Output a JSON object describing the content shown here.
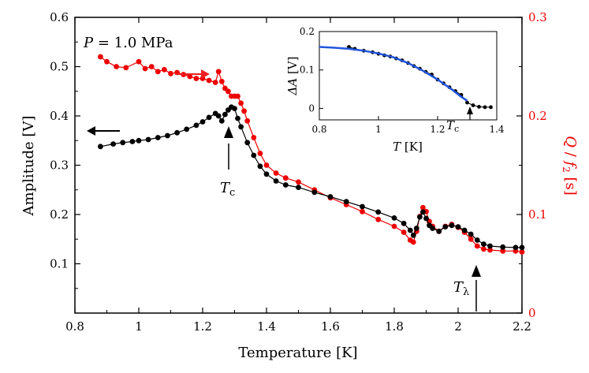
{
  "chart_data": {
    "type": "scatter",
    "main": {
      "xlabel": "Temperature [K]",
      "ylabel_left": "Amplitude [V]",
      "ylabel_right": "Q / f2 [s]",
      "ylabel_right_symbol": "Q",
      "ylabel_right_sep": " / ",
      "ylabel_right_f": "f",
      "ylabel_right_sub": "2",
      "ylabel_right_unit": " [s]",
      "xlim": [
        0.8,
        2.2
      ],
      "ylim_left": [
        0.0,
        0.6
      ],
      "ylim_right": [
        0.0,
        0.3
      ],
      "x_ticks": [
        "0.8",
        "1",
        "1.2",
        "1.4",
        "1.6",
        "1.8",
        "2",
        "2.2"
      ],
      "y_left_ticks": [
        "0.1",
        "0.2",
        "0.3",
        "0.4",
        "0.5",
        "0.6"
      ],
      "y_right_ticks": [
        "0",
        "0.1",
        "0.2",
        "0.3"
      ],
      "pressure_symbol": "P",
      "pressure_value": " = 1.0 MPa",
      "tc_symbol": "T",
      "tc_sub": "c",
      "tl_symbol": "T",
      "tl_sub": "λ",
      "series": [
        {
          "name": "Amplitude",
          "axis": "left",
          "color": "#000000",
          "x": [
            0.88,
            0.92,
            0.95,
            0.98,
            1.0,
            1.03,
            1.06,
            1.09,
            1.12,
            1.15,
            1.18,
            1.2,
            1.22,
            1.24,
            1.25,
            1.26,
            1.27,
            1.28,
            1.29,
            1.3,
            1.31,
            1.32,
            1.34,
            1.36,
            1.38,
            1.4,
            1.43,
            1.46,
            1.5,
            1.55,
            1.6,
            1.65,
            1.7,
            1.75,
            1.8,
            1.83,
            1.85,
            1.86,
            1.87,
            1.88,
            1.89,
            1.9,
            1.91,
            1.92,
            1.94,
            1.96,
            1.98,
            2.0,
            2.02,
            2.04,
            2.06,
            2.08,
            2.1,
            2.14,
            2.18,
            2.2
          ],
          "y": [
            0.338,
            0.343,
            0.346,
            0.348,
            0.35,
            0.352,
            0.356,
            0.36,
            0.366,
            0.373,
            0.381,
            0.388,
            0.397,
            0.405,
            0.4,
            0.39,
            0.403,
            0.412,
            0.418,
            0.415,
            0.395,
            0.378,
            0.346,
            0.32,
            0.298,
            0.282,
            0.268,
            0.26,
            0.255,
            0.245,
            0.236,
            0.226,
            0.216,
            0.205,
            0.193,
            0.182,
            0.168,
            0.158,
            0.172,
            0.195,
            0.205,
            0.192,
            0.178,
            0.172,
            0.166,
            0.175,
            0.178,
            0.175,
            0.168,
            0.16,
            0.148,
            0.14,
            0.136,
            0.134,
            0.133,
            0.133
          ]
        },
        {
          "name": "Q/f2",
          "axis": "right",
          "color": "#ee0000",
          "x": [
            0.88,
            0.9,
            0.93,
            0.96,
            1.0,
            1.02,
            1.04,
            1.06,
            1.08,
            1.1,
            1.12,
            1.14,
            1.16,
            1.18,
            1.2,
            1.22,
            1.24,
            1.25,
            1.26,
            1.27,
            1.28,
            1.29,
            1.3,
            1.31,
            1.32,
            1.33,
            1.34,
            1.36,
            1.38,
            1.4,
            1.43,
            1.46,
            1.5,
            1.55,
            1.6,
            1.65,
            1.7,
            1.75,
            1.8,
            1.83,
            1.85,
            1.86,
            1.87,
            1.88,
            1.89,
            1.9,
            1.91,
            1.92,
            1.94,
            1.96,
            1.98,
            2.0,
            2.02,
            2.04,
            2.06,
            2.08,
            2.1,
            2.14,
            2.18,
            2.2
          ],
          "y": [
            0.26,
            0.255,
            0.25,
            0.249,
            0.255,
            0.248,
            0.25,
            0.245,
            0.247,
            0.243,
            0.244,
            0.242,
            0.24,
            0.238,
            0.238,
            0.236,
            0.234,
            0.245,
            0.235,
            0.228,
            0.225,
            0.22,
            0.22,
            0.22,
            0.213,
            0.205,
            0.195,
            0.178,
            0.162,
            0.15,
            0.142,
            0.137,
            0.133,
            0.125,
            0.117,
            0.11,
            0.103,
            0.095,
            0.088,
            0.082,
            0.074,
            0.072,
            0.083,
            0.098,
            0.107,
            0.103,
            0.093,
            0.088,
            0.083,
            0.088,
            0.09,
            0.087,
            0.082,
            0.075,
            0.068,
            0.065,
            0.064,
            0.063,
            0.063,
            0.062
          ]
        }
      ]
    },
    "inset": {
      "xlabel_symbol": "T",
      "xlabel_unit": " [K]",
      "ylabel_symbol": "ΔA",
      "ylabel_unit": " [V]",
      "xlim": [
        0.8,
        1.4
      ],
      "ylim": [
        -0.03,
        0.2
      ],
      "x_ticks": [
        "0.8",
        "1",
        "1.2",
        "1.4"
      ],
      "y_ticks": [
        "0",
        "0.1",
        "0.2"
      ],
      "tc_symbol": "T",
      "tc_sub": "c",
      "series": [
        {
          "name": "data",
          "color": "#000000",
          "x": [
            0.9,
            0.92,
            0.95,
            0.98,
            1.0,
            1.02,
            1.04,
            1.06,
            1.08,
            1.1,
            1.12,
            1.14,
            1.16,
            1.18,
            1.2,
            1.22,
            1.24,
            1.26,
            1.28,
            1.3,
            1.32,
            1.34,
            1.36,
            1.38
          ],
          "y": [
            0.16,
            0.155,
            0.15,
            0.146,
            0.142,
            0.138,
            0.135,
            0.13,
            0.125,
            0.118,
            0.11,
            0.103,
            0.095,
            0.088,
            0.075,
            0.065,
            0.055,
            0.045,
            0.035,
            0.015,
            0.008,
            0.004,
            0.003,
            0.003
          ]
        },
        {
          "name": "fit",
          "color": "#2255dd",
          "x": [
            0.8,
            0.85,
            0.9,
            0.95,
            1.0,
            1.05,
            1.1,
            1.15,
            1.2,
            1.25,
            1.28,
            1.3
          ],
          "y": [
            0.16,
            0.158,
            0.155,
            0.15,
            0.143,
            0.133,
            0.118,
            0.098,
            0.075,
            0.048,
            0.03,
            0.02
          ]
        }
      ]
    }
  }
}
